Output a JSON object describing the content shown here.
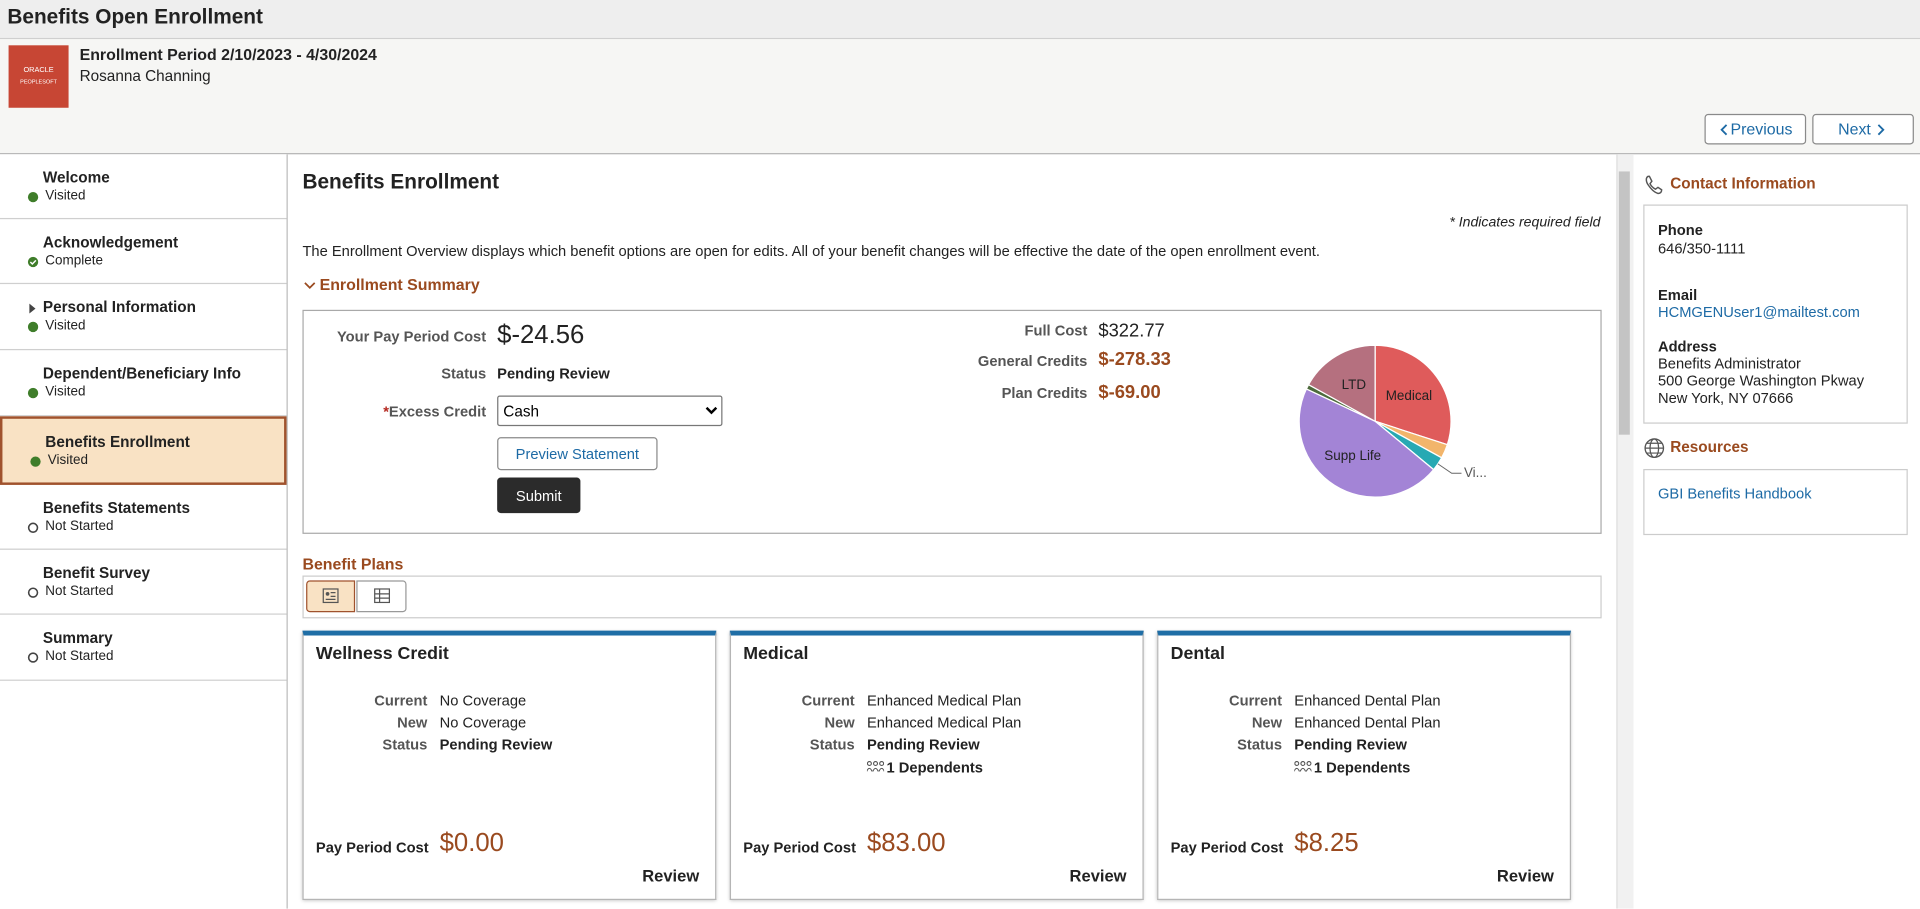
{
  "header": {
    "title": "Benefits Open Enrollment"
  },
  "logo": {
    "line1": "ORACLE",
    "line2": "PEOPLESOFT"
  },
  "enrollment": {
    "period": "Enrollment Period 2/10/2023 - 4/30/2024",
    "name": "Rosanna Channing"
  },
  "nav_buttons": {
    "previous": "Previous",
    "next": "Next"
  },
  "steps": [
    {
      "label": "Welcome",
      "status": "Visited"
    },
    {
      "label": "Acknowledgement",
      "status": "Complete"
    },
    {
      "label": "Personal Information",
      "status": "Visited"
    },
    {
      "label": "Dependent/Beneficiary Info",
      "status": "Visited"
    },
    {
      "label": "Benefits Enrollment",
      "status": "Visited"
    },
    {
      "label": "Benefits Statements",
      "status": "Not Started"
    },
    {
      "label": "Benefit Survey",
      "status": "Not Started"
    },
    {
      "label": "Summary",
      "status": "Not Started"
    }
  ],
  "main": {
    "title": "Benefits Enrollment",
    "required_note": "* Indicates required field",
    "intro": "The Enrollment Overview displays which benefit options are open for edits. All of your benefit changes will be effective the date of the open enrollment event.",
    "summary": {
      "heading": "Enrollment Summary",
      "pay_period_cost_label": "Your Pay Period Cost",
      "pay_period_cost": "$-24.56",
      "status_label": "Status",
      "status": "Pending Review",
      "required_mark": "*",
      "excess_credit_label": "Excess Credit",
      "excess_credit": "Cash",
      "preview": "Preview Statement",
      "submit": "Submit",
      "full_cost_label": "Full Cost",
      "full_cost": "$322.77",
      "general_credits_label": "General Credits",
      "general_credits": "$-278.33",
      "plan_credits_label": "Plan Credits",
      "plan_credits": "$-69.00"
    },
    "plans": {
      "heading": "Benefit Plans",
      "cards": [
        {
          "title": "Wellness Credit",
          "current_label": "Current",
          "current": "No Coverage",
          "new_label": "New",
          "new": "No Coverage",
          "status_label": "Status",
          "status": "Pending Review",
          "cost_label": "Pay Period Cost",
          "cost": "$0.00",
          "review": "Review"
        },
        {
          "title": "Medical",
          "current_label": "Current",
          "current": "Enhanced Medical Plan",
          "new_label": "New",
          "new": "Enhanced Medical Plan",
          "status_label": "Status",
          "status": "Pending Review",
          "dependents": "1 Dependents",
          "cost_label": "Pay Period Cost",
          "cost": "$83.00",
          "review": "Review"
        },
        {
          "title": "Dental",
          "current_label": "Current",
          "current": "Enhanced Dental Plan",
          "new_label": "New",
          "new": "Enhanced Dental Plan",
          "status_label": "Status",
          "status": "Pending Review",
          "dependents": "1 Dependents",
          "cost_label": "Pay Period Cost",
          "cost": "$8.25",
          "review": "Review"
        }
      ]
    }
  },
  "chart_data": {
    "type": "pie",
    "categories": [
      "Medical",
      null,
      "Vi...",
      "Supp Life",
      null,
      "LTD"
    ],
    "values": [
      30,
      3,
      3,
      46,
      1,
      17
    ],
    "colors": [
      "#df5b5b",
      "#f2b56b",
      "#27a9b3",
      "#a384d6",
      "#4d6b3c",
      "#b5707f"
    ]
  },
  "sidebar": {
    "contact": {
      "heading": "Contact Information",
      "phone_label": "Phone",
      "phone": "646/350-1111",
      "email_label": "Email",
      "email": "HCMGENUser1@mailtest.com",
      "address_label": "Address",
      "address_lines": [
        "Benefits Administrator",
        "500 George Washington Pkway",
        "New York, NY 07666"
      ]
    },
    "resources": {
      "heading": "Resources",
      "link": "GBI Benefits Handbook"
    }
  }
}
